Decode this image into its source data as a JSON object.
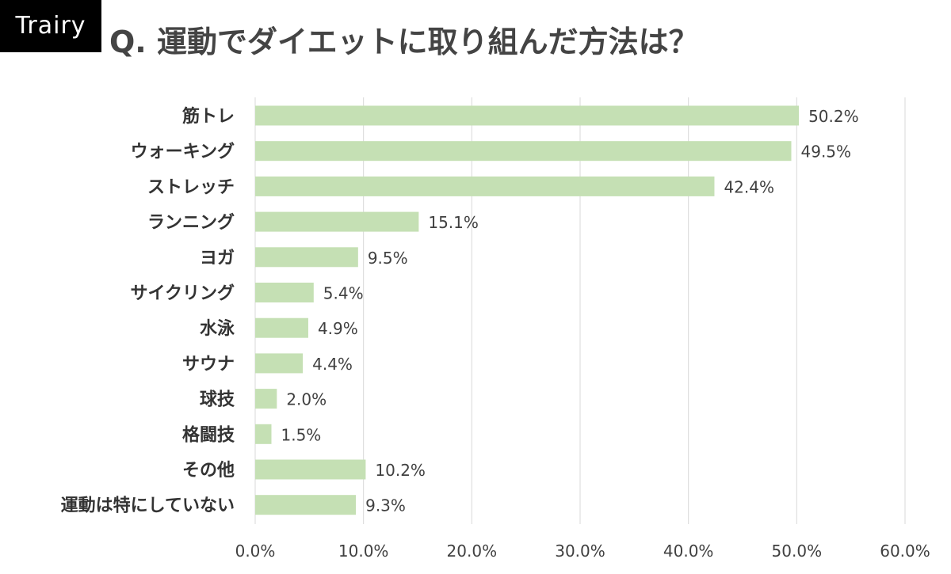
{
  "brand": "Trairy",
  "title": "Q. 運動でダイエットに取り組んだ方法は？",
  "colors": {
    "bar": "#c5e0b4",
    "grid": "#d9d9d9",
    "text": "#404040",
    "brand_bg": "#000000"
  },
  "chart_data": {
    "type": "bar",
    "orientation": "horizontal",
    "categories": [
      "筋トレ",
      "ウォーキング",
      "ストレッチ",
      "ランニング",
      "ヨガ",
      "サイクリング",
      "水泳",
      "サウナ",
      "球技",
      "格闘技",
      "その他",
      "運動は特にしていない"
    ],
    "values": [
      50.2,
      49.5,
      42.4,
      15.1,
      9.5,
      5.4,
      4.9,
      4.4,
      2.0,
      1.5,
      10.2,
      9.3
    ],
    "value_labels": [
      "50.2%",
      "49.5%",
      "42.4%",
      "15.1%",
      "9.5%",
      "5.4%",
      "4.9%",
      "4.4%",
      "2.0%",
      "1.5%",
      "10.2%",
      "9.3%"
    ],
    "xlim": [
      0,
      60
    ],
    "x_ticks": [
      0,
      10,
      20,
      30,
      40,
      50,
      60
    ],
    "x_tick_labels": [
      "0.0%",
      "10.0%",
      "20.0%",
      "30.0%",
      "40.0%",
      "50.0%",
      "60.0%"
    ],
    "grid": true,
    "legend": "none"
  }
}
